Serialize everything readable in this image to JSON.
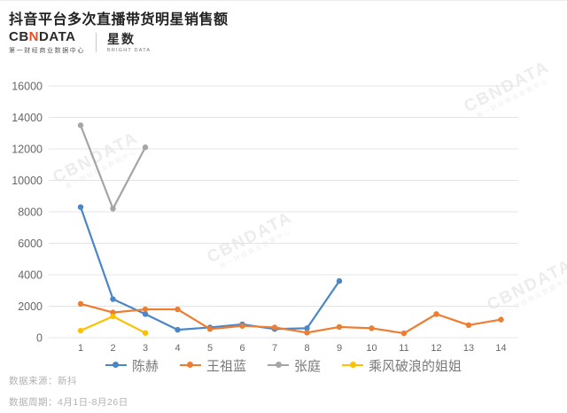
{
  "title": "抖音平台多次直播带货明星销售额",
  "logo": {
    "cb": "CB",
    "n": "N",
    "data": "DATA",
    "subtitle": "第一财经商业数据中心",
    "brand2": "星数",
    "brand2_sub": "BRIGHT DATA"
  },
  "watermark": {
    "line1": "CBNDATA",
    "line2": "第一财经商业数据中心"
  },
  "footer": {
    "source": "数据来源：新抖",
    "period": "数据周期：4月1日-8月26日"
  },
  "colors": {
    "grid": "#e4e4e4",
    "axis_text": "#666666",
    "legend_text": "#7a7a7a",
    "logo_accent": "#f04b23"
  },
  "chart_data": {
    "type": "line",
    "title": "抖音平台多次直播带货明星销售额",
    "xlabel": "",
    "ylabel": "",
    "categories": [
      "1",
      "2",
      "3",
      "4",
      "5",
      "6",
      "7",
      "8",
      "9",
      "10",
      "11",
      "12",
      "13",
      "14"
    ],
    "series": [
      {
        "name": "陈赫",
        "color": "#4A86C8",
        "values": [
          8300,
          2450,
          1500,
          500,
          650,
          850,
          550,
          600,
          3600
        ]
      },
      {
        "name": "王祖蓝",
        "color": "#ED7D31",
        "values": [
          2150,
          1600,
          1800,
          1800,
          550,
          750,
          650,
          320,
          680,
          600,
          280,
          1500,
          800,
          1150
        ]
      },
      {
        "name": "张庭",
        "color": "#A5A5A5",
        "values": [
          13500,
          8200,
          12100
        ]
      },
      {
        "name": "乘风破浪的姐姐",
        "color": "#FFC000",
        "values": [
          450,
          1350,
          300
        ]
      }
    ],
    "ylim": [
      0,
      16000
    ],
    "ytick_step": 2000,
    "grid": "horizontal-only",
    "legend_position": "bottom"
  }
}
